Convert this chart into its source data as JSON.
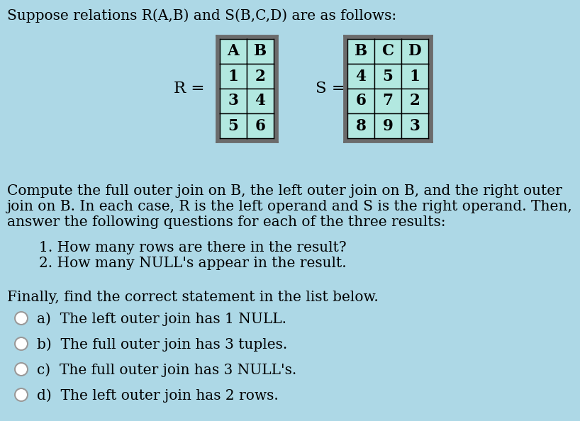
{
  "bg_color": "#add8e6",
  "title_text": "Suppose relations R(A,B) and S(B,C,D) are as follows:",
  "R_headers": [
    "A",
    "B"
  ],
  "R_rows": [
    [
      "1",
      "2"
    ],
    [
      "3",
      "4"
    ],
    [
      "5",
      "6"
    ]
  ],
  "S_headers": [
    "B",
    "C",
    "D"
  ],
  "S_rows": [
    [
      "4",
      "5",
      "1"
    ],
    [
      "6",
      "7",
      "2"
    ],
    [
      "8",
      "9",
      "3"
    ]
  ],
  "table_cell_color": "#b2e8e0",
  "table_border_outer": "#6b6b6b",
  "table_border_inner": "#000000",
  "body_lines": [
    "Compute the full outer join on B, the left outer join on B, and the right outer",
    "join on B. In each case, R is the left operand and S is the right operand. Then,",
    "answer the following questions for each of the three results:"
  ],
  "list_items": [
    "1. How many rows are there in the result?",
    "2. How many NULL's appear in the result."
  ],
  "finally_text": "Finally, find the correct statement in the list below.",
  "options": [
    "a)  The left outer join has 1 NULL.",
    "b)  The full outer join has 3 tuples.",
    "c)  The full outer join has 3 NULL's.",
    "d)  The left outer join has 2 rows."
  ],
  "text_color": "#000000",
  "font_family": "serif",
  "font_size": 14.5
}
